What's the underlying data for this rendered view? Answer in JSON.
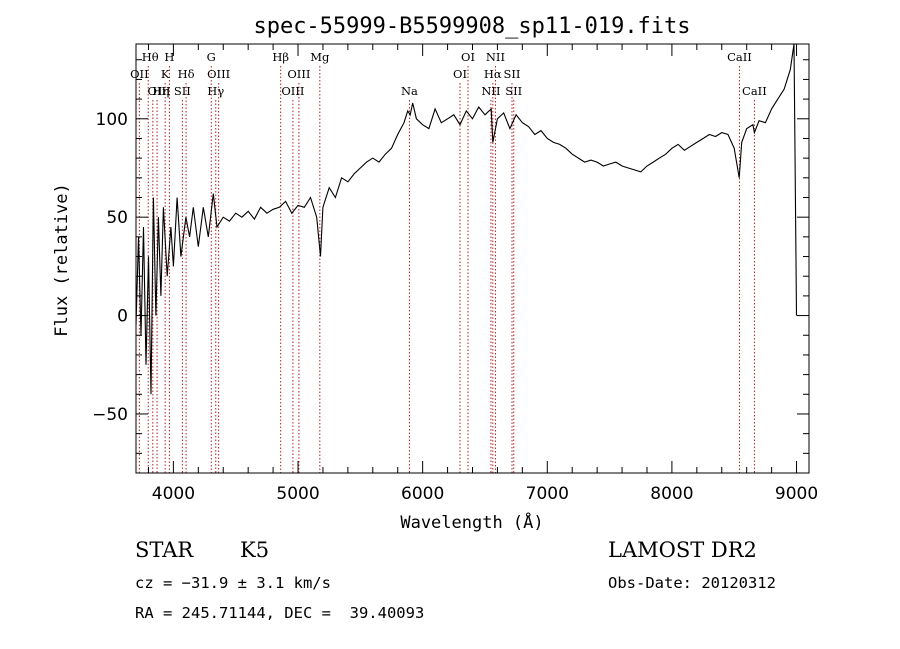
{
  "chart_data": {
    "type": "line",
    "title": "spec-55999-B5599908_sp11-019.fits",
    "xlabel": "Wavelength (Å)",
    "ylabel": "Flux (relative)",
    "xlim": [
      3700,
      9100
    ],
    "ylim": [
      -80,
      138
    ],
    "xticks": [
      4000,
      5000,
      6000,
      7000,
      8000,
      9000
    ],
    "yticks": [
      -50,
      0,
      50,
      100
    ],
    "grid": false,
    "series": [
      {
        "line_color": "#000000",
        "x": [
          3700,
          3720,
          3740,
          3760,
          3780,
          3800,
          3820,
          3840,
          3860,
          3880,
          3900,
          3920,
          3950,
          3980,
          4000,
          4030,
          4060,
          4100,
          4130,
          4160,
          4200,
          4240,
          4280,
          4320,
          4350,
          4400,
          4450,
          4500,
          4550,
          4600,
          4650,
          4700,
          4750,
          4800,
          4850,
          4900,
          4950,
          5000,
          5050,
          5100,
          5150,
          5180,
          5200,
          5250,
          5300,
          5350,
          5400,
          5450,
          5500,
          5550,
          5600,
          5650,
          5700,
          5750,
          5800,
          5850,
          5880,
          5900,
          5920,
          5950,
          6000,
          6050,
          6100,
          6150,
          6200,
          6250,
          6300,
          6350,
          6400,
          6450,
          6500,
          6550,
          6563,
          6600,
          6650,
          6700,
          6750,
          6800,
          6850,
          6900,
          6950,
          7000,
          7050,
          7100,
          7150,
          7200,
          7250,
          7300,
          7350,
          7400,
          7450,
          7500,
          7550,
          7600,
          7650,
          7700,
          7750,
          7800,
          7850,
          7900,
          7950,
          8000,
          8050,
          8100,
          8150,
          8200,
          8250,
          8300,
          8350,
          8400,
          8450,
          8500,
          8540,
          8560,
          8600,
          8650,
          8662,
          8700,
          8750,
          8800,
          8850,
          8900,
          8950,
          8980,
          9000
        ],
        "y": [
          -5,
          40,
          -10,
          45,
          -25,
          30,
          -40,
          60,
          0,
          50,
          10,
          55,
          20,
          45,
          25,
          60,
          30,
          50,
          40,
          55,
          35,
          55,
          40,
          62,
          45,
          50,
          48,
          52,
          50,
          53,
          49,
          55,
          52,
          54,
          55,
          58,
          52,
          56,
          55,
          60,
          50,
          30,
          55,
          65,
          60,
          70,
          68,
          72,
          75,
          78,
          80,
          78,
          82,
          85,
          92,
          98,
          104,
          102,
          108,
          100,
          97,
          95,
          105,
          98,
          100,
          102,
          97,
          104,
          100,
          106,
          102,
          105,
          88,
          100,
          103,
          95,
          102,
          98,
          96,
          92,
          94,
          90,
          88,
          87,
          85,
          82,
          80,
          78,
          79,
          78,
          76,
          77,
          78,
          76,
          75,
          74,
          73,
          76,
          78,
          80,
          82,
          85,
          87,
          84,
          86,
          88,
          90,
          92,
          91,
          93,
          92,
          85,
          70,
          88,
          95,
          97,
          93,
          99,
          98,
          105,
          110,
          115,
          125,
          140,
          0
        ],
        "x_label_unit": "Å"
      }
    ],
    "spectral_lines": [
      {
        "label": "Hθ",
        "wl": 3798,
        "row": 0,
        "side": "l"
      },
      {
        "label": "OII",
        "wl": 3727,
        "row": 1,
        "side": "c"
      },
      {
        "label": "OIII",
        "wl": 3869,
        "row": 2,
        "side": "l"
      },
      {
        "label": "Hη",
        "wl": 3835,
        "row": 2,
        "side": "r"
      },
      {
        "label": "H",
        "wl": 3968,
        "row": 0,
        "side": "c"
      },
      {
        "label": "K",
        "wl": 3934,
        "row": 1,
        "side": "c"
      },
      {
        "label": "Hδ",
        "wl": 4102,
        "row": 1,
        "side": "c"
      },
      {
        "label": "SII",
        "wl": 4072,
        "row": 2,
        "side": "c"
      },
      {
        "label": "G",
        "wl": 4304,
        "row": 0,
        "side": "c"
      },
      {
        "label": "OIII",
        "wl": 4363,
        "row": 1,
        "side": "c"
      },
      {
        "label": "Hγ",
        "wl": 4340,
        "row": 2,
        "side": "c"
      },
      {
        "label": "Hβ",
        "wl": 4861,
        "row": 0,
        "side": "c"
      },
      {
        "label": "OIII",
        "wl": 5007,
        "row": 1,
        "side": "c"
      },
      {
        "label": "OIII",
        "wl": 4959,
        "row": 2,
        "side": "c"
      },
      {
        "label": "Mg",
        "wl": 5175,
        "row": 0,
        "side": "c"
      },
      {
        "label": "Na",
        "wl": 5894,
        "row": 2,
        "side": "c"
      },
      {
        "label": "OI",
        "wl": 6364,
        "row": 0,
        "side": "c"
      },
      {
        "label": "OI",
        "wl": 6300,
        "row": 1,
        "side": "c"
      },
      {
        "label": "NII",
        "wl": 6584,
        "row": 0,
        "side": "c"
      },
      {
        "label": "Hα",
        "wl": 6563,
        "row": 1,
        "side": "c"
      },
      {
        "label": "SII",
        "wl": 6717,
        "row": 1,
        "side": "c"
      },
      {
        "label": "NII",
        "wl": 6548,
        "row": 2,
        "side": "c"
      },
      {
        "label": "SII",
        "wl": 6731,
        "row": 2,
        "side": "c"
      },
      {
        "label": "CaII",
        "wl": 8542,
        "row": 0,
        "side": "c"
      },
      {
        "label": "CaII",
        "wl": 8662,
        "row": 2,
        "side": "c"
      }
    ],
    "marker_line_color": "#b22222"
  },
  "info": {
    "object_class": "STAR",
    "subclass": "K5",
    "survey": "LAMOST DR2",
    "cz": "cz = −31.9 ± 3.1 km/s",
    "obs_date": "Obs-Date: 20120312",
    "coords": "RA = 245.71144, DEC =  39.40093"
  }
}
